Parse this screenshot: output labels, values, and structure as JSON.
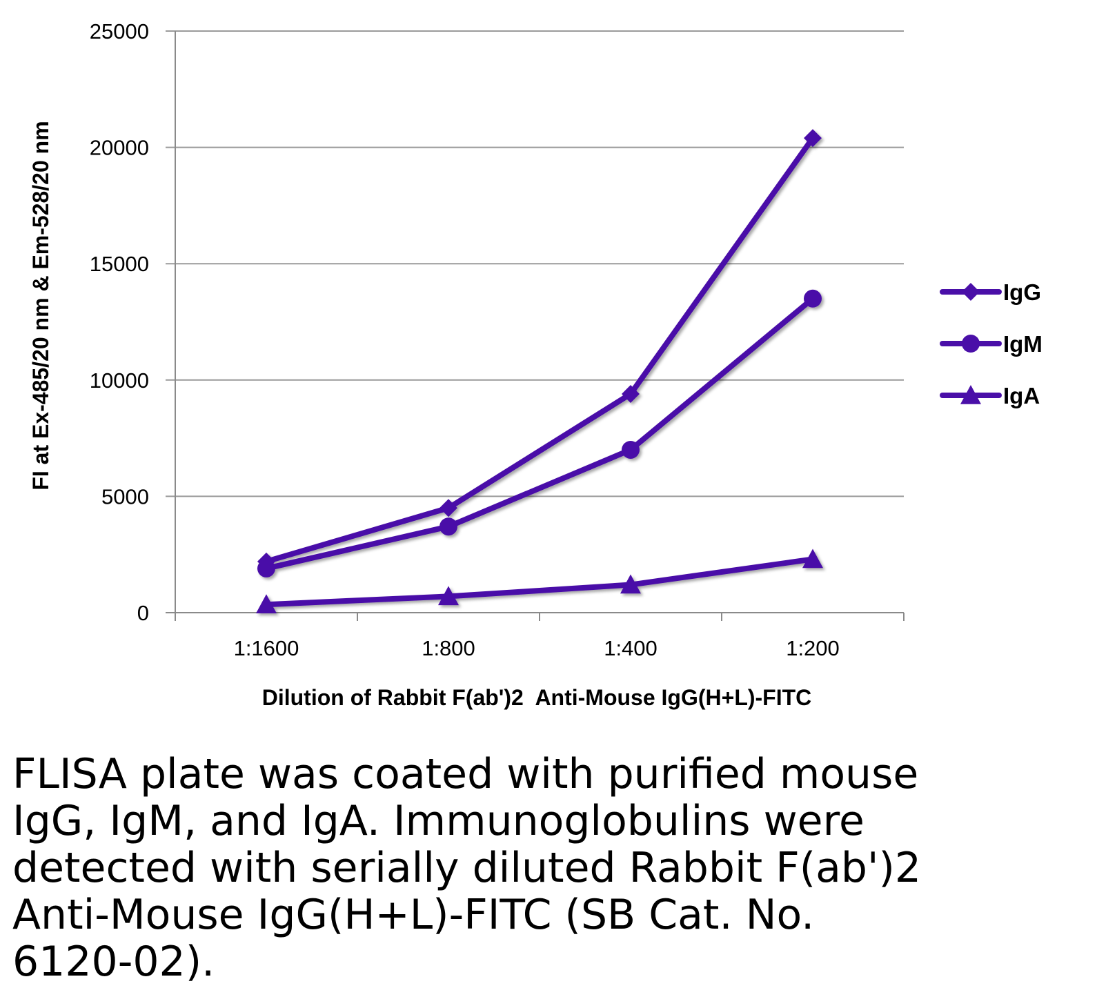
{
  "chart_data": {
    "type": "line",
    "title": "",
    "categories": [
      "1:1600",
      "1:800",
      "1:400",
      "1:200"
    ],
    "series": [
      {
        "name": "IgG",
        "marker": "diamond",
        "values": [
          2200,
          4500,
          9400,
          20400
        ]
      },
      {
        "name": "IgM",
        "marker": "circle",
        "values": [
          1900,
          3700,
          7000,
          13500
        ]
      },
      {
        "name": "IgA",
        "marker": "triangle",
        "values": [
          350,
          700,
          1200,
          2300
        ]
      }
    ],
    "xlabel": "Dilution of Rabbit F(ab')2  Anti-Mouse IgG(H+L)-FITC",
    "ylabel": "FI at Ex-485/20 nm & Em-528/20 nm",
    "ylim": [
      0,
      25000
    ],
    "yticks": [
      "0",
      "5000",
      "10000",
      "15000",
      "20000",
      "25000"
    ],
    "grid": true,
    "legend_position": "right",
    "line_color": "#4a0fa8"
  },
  "caption": "FLISA plate was coated with purified mouse IgG, IgM, and IgA.  Immunoglobulins were detected with serially diluted Rabbit F(ab')2 Anti-Mouse IgG(H+L)-FITC (SB Cat. No. 6120-02)."
}
